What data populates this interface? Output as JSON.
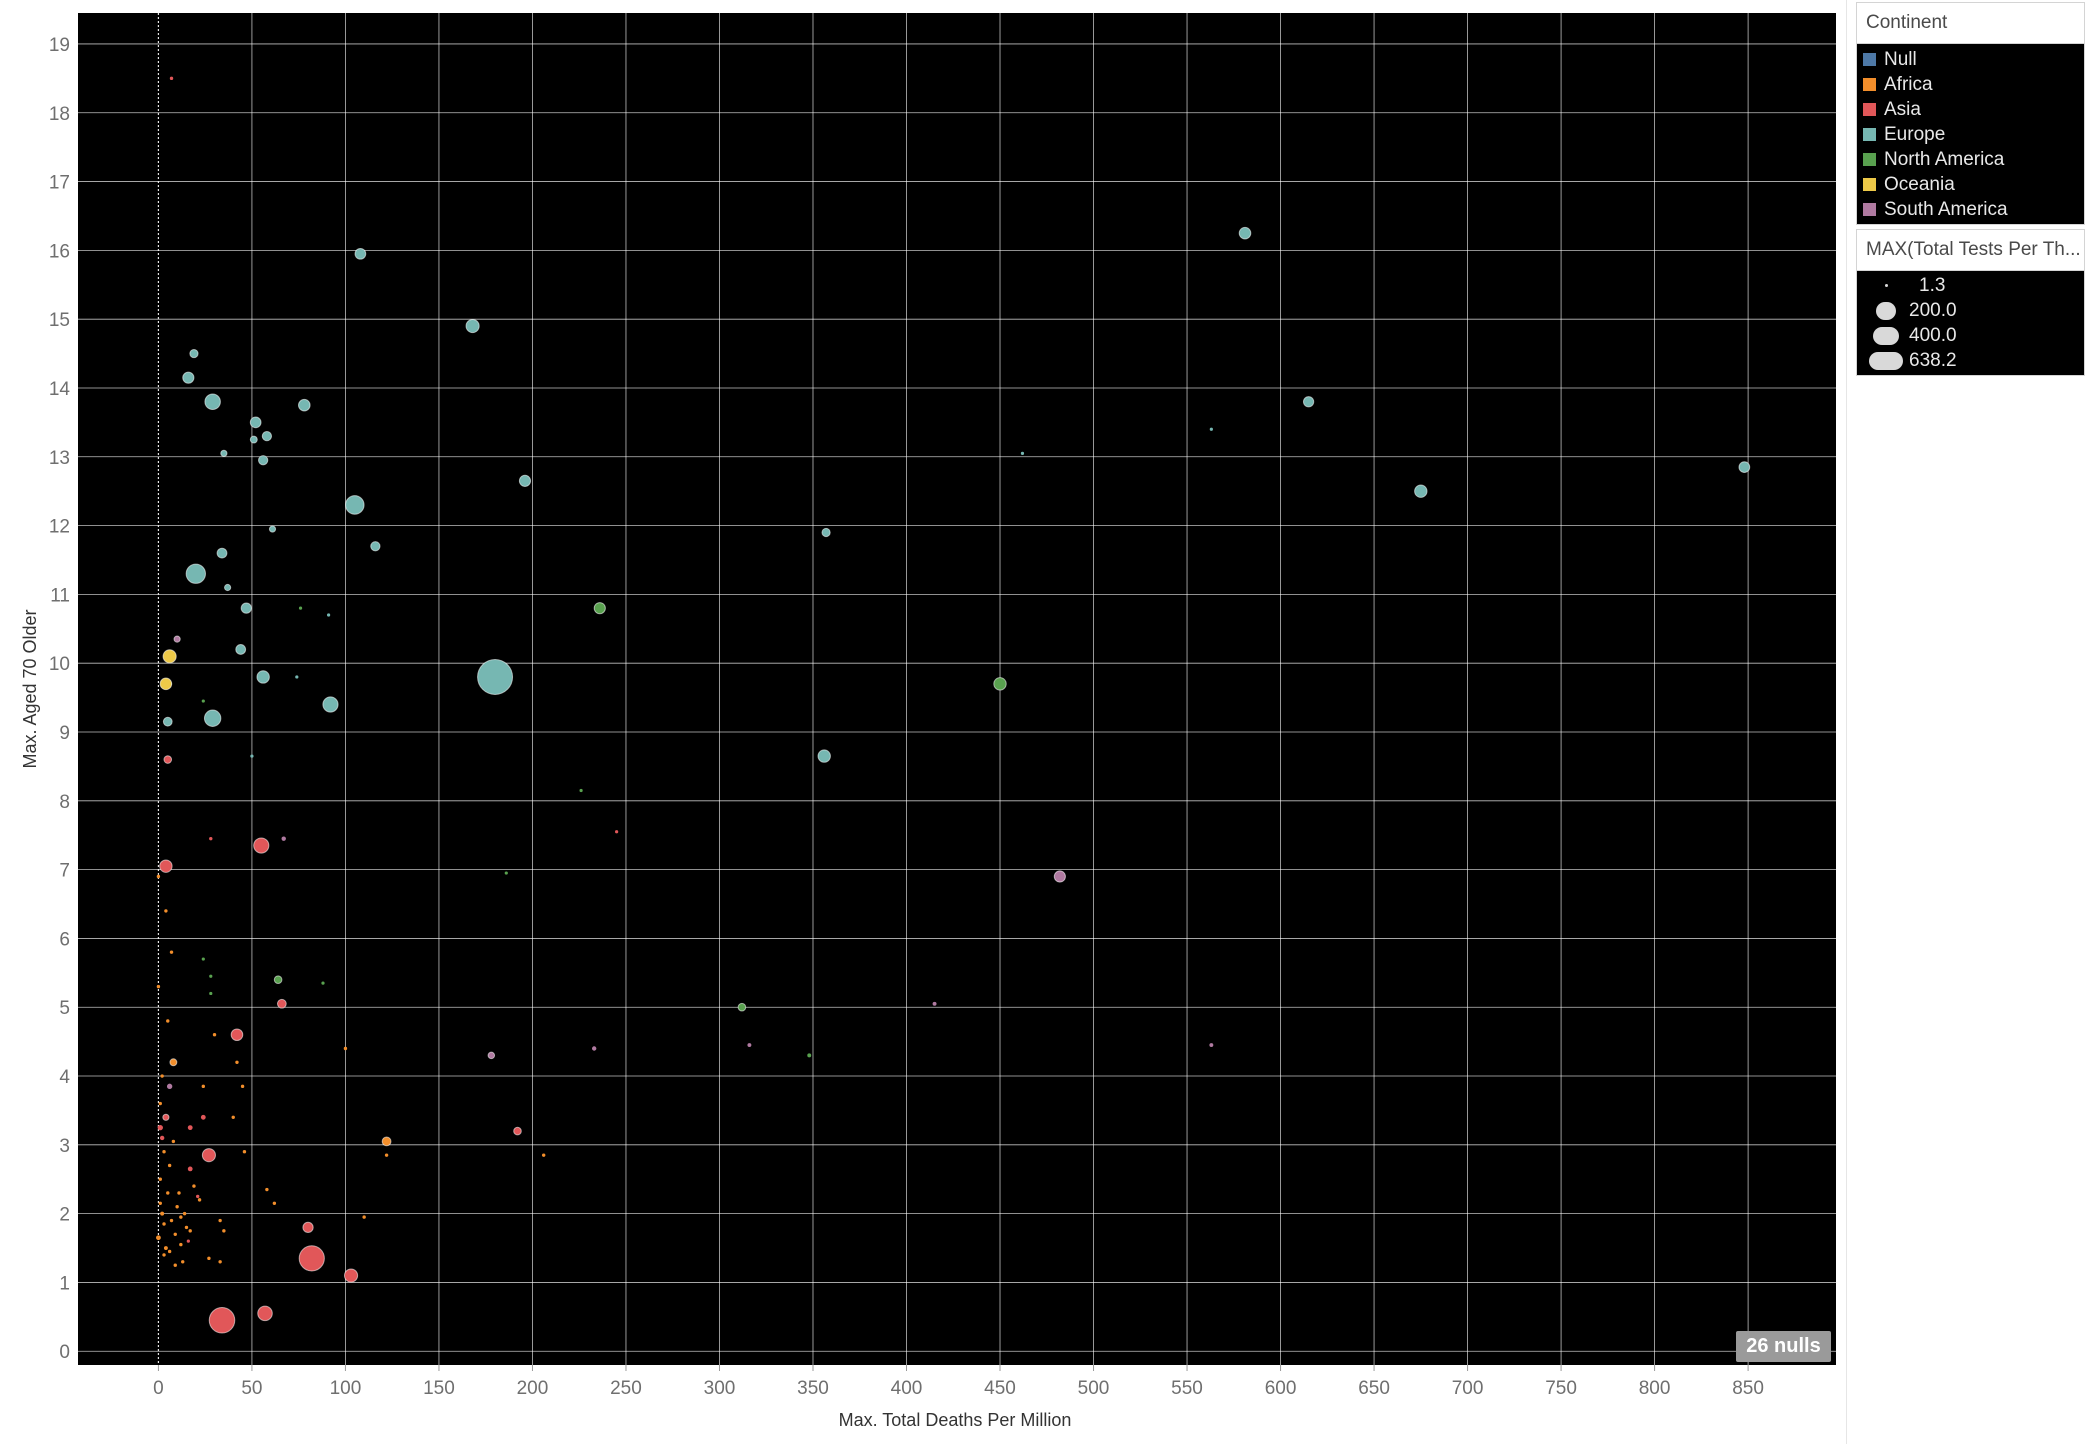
{
  "chart_data": {
    "type": "scatter",
    "title": "",
    "xlabel": "Max. Total Deaths Per Million",
    "ylabel": "Max. Aged 70 Older",
    "xlim": [
      -43,
      897
    ],
    "ylim": [
      -0.2,
      19.45
    ],
    "x_ticks": [
      0,
      50,
      100,
      150,
      200,
      250,
      300,
      350,
      400,
      450,
      500,
      550,
      600,
      650,
      700,
      750,
      800,
      850
    ],
    "y_ticks": [
      0,
      1,
      2,
      3,
      4,
      5,
      6,
      7,
      8,
      9,
      10,
      11,
      12,
      13,
      14,
      15,
      16,
      17,
      18,
      19
    ],
    "grid": true,
    "background": "#000000",
    "zero_line": "dotted",
    "legend_placement": "right",
    "color_legend": {
      "title": "Continent",
      "items": [
        {
          "label": "Null",
          "color": "#4e79a7"
        },
        {
          "label": "Africa",
          "color": "#f28e2b"
        },
        {
          "label": "Asia",
          "color": "#e15759"
        },
        {
          "label": "Europe",
          "color": "#76b7b2"
        },
        {
          "label": "North America",
          "color": "#59a14f"
        },
        {
          "label": "Oceania",
          "color": "#edc948"
        },
        {
          "label": "South America",
          "color": "#b07aa1"
        }
      ]
    },
    "size_legend": {
      "title": "MAX(Total Tests Per Th...",
      "items": [
        {
          "label": "1.3",
          "value": 1.3
        },
        {
          "label": "200.0",
          "value": 200
        },
        {
          "label": "400.0",
          "value": 400
        },
        {
          "label": "638.2",
          "value": 638.2
        }
      ]
    },
    "nulls_label": "26 nulls",
    "series": [
      {
        "name": "Europe",
        "color": "#76b7b2",
        "points": [
          [
            108,
            15.95,
            60
          ],
          [
            168,
            14.9,
            90
          ],
          [
            19,
            14.5,
            35
          ],
          [
            16,
            14.15,
            65
          ],
          [
            29,
            13.8,
            125
          ],
          [
            52,
            13.5,
            60
          ],
          [
            78,
            13.75,
            70
          ],
          [
            58,
            13.3,
            45
          ],
          [
            51,
            13.25,
            25
          ],
          [
            35,
            13.05,
            20
          ],
          [
            56,
            12.95,
            45
          ],
          [
            105,
            12.3,
            180
          ],
          [
            196,
            12.65,
            65
          ],
          [
            61,
            11.95,
            20
          ],
          [
            116,
            11.7,
            45
          ],
          [
            34,
            11.6,
            50
          ],
          [
            20,
            11.3,
            195
          ],
          [
            37,
            11.1,
            20
          ],
          [
            47,
            10.8,
            55
          ],
          [
            44,
            10.2,
            50
          ],
          [
            56,
            9.8,
            80
          ],
          [
            180,
            9.8,
            638.2
          ],
          [
            92,
            9.4,
            120
          ],
          [
            29,
            9.2,
            140
          ],
          [
            5,
            9.15,
            40
          ],
          [
            581,
            16.25,
            70
          ],
          [
            615,
            13.8,
            55
          ],
          [
            675,
            12.5,
            80
          ],
          [
            848,
            12.85,
            60
          ],
          [
            357,
            11.9,
            35
          ],
          [
            356,
            8.65,
            80
          ],
          [
            6,
            9.7,
            12
          ],
          [
            50,
            8.65,
            5
          ],
          [
            74,
            9.8,
            5
          ],
          [
            91,
            10.7,
            5
          ],
          [
            563,
            13.4,
            5
          ],
          [
            462,
            13.05,
            5
          ]
        ]
      },
      {
        "name": "Asia",
        "color": "#e15759",
        "points": [
          [
            7,
            18.5,
            6
          ],
          [
            5,
            8.6,
            30
          ],
          [
            55,
            7.35,
            120
          ],
          [
            4,
            7.05,
            80
          ],
          [
            66,
            5.05,
            40
          ],
          [
            42,
            4.6,
            70
          ],
          [
            27,
            2.85,
            90
          ],
          [
            4,
            3.4,
            20
          ],
          [
            192,
            3.2,
            30
          ],
          [
            80,
            1.8,
            55
          ],
          [
            82,
            1.35,
            330
          ],
          [
            103,
            1.1,
            90
          ],
          [
            34,
            0.45,
            340
          ],
          [
            57,
            0.55,
            110
          ],
          [
            17,
            3.25,
            12
          ],
          [
            24,
            3.4,
            12
          ],
          [
            17,
            2.65,
            12
          ],
          [
            1,
            3.25,
            15
          ],
          [
            2,
            3.1,
            10
          ],
          [
            28,
            7.45,
            6
          ],
          [
            245,
            7.55,
            5
          ],
          [
            16,
            1.6,
            5
          ],
          [
            21,
            2.25,
            6
          ]
        ]
      },
      {
        "name": "North America",
        "color": "#59a14f",
        "points": [
          [
            236,
            10.8,
            65
          ],
          [
            450,
            9.7,
            80
          ],
          [
            64,
            5.4,
            30
          ],
          [
            312,
            5.0,
            30
          ],
          [
            348,
            4.3,
            8
          ],
          [
            24,
            9.45,
            5
          ],
          [
            226,
            8.15,
            5
          ],
          [
            24,
            5.7,
            5
          ],
          [
            28,
            5.45,
            5
          ],
          [
            28,
            5.2,
            5
          ],
          [
            76,
            10.8,
            5
          ],
          [
            88,
            5.35,
            5
          ],
          [
            186,
            6.95,
            5
          ]
        ]
      },
      {
        "name": "Oceania",
        "color": "#edc948",
        "points": [
          [
            6,
            10.1,
            90
          ],
          [
            4,
            9.7,
            70
          ]
        ]
      },
      {
        "name": "South America",
        "color": "#b07aa1",
        "points": [
          [
            10,
            10.35,
            20
          ],
          [
            482,
            6.9,
            65
          ],
          [
            178,
            4.3,
            22
          ],
          [
            67,
            7.45,
            10
          ],
          [
            6,
            3.85,
            15
          ],
          [
            233,
            4.4,
            10
          ],
          [
            316,
            4.45,
            8
          ],
          [
            415,
            5.05,
            8
          ],
          [
            563,
            4.45,
            8
          ]
        ]
      },
      {
        "name": "Africa",
        "color": "#f28e2b",
        "points": [
          [
            122,
            3.05,
            40
          ],
          [
            8,
            4.2,
            25
          ],
          [
            0,
            1.65,
            12
          ],
          [
            2,
            2.0,
            8
          ],
          [
            4,
            1.5,
            8
          ],
          [
            5,
            2.3,
            6
          ],
          [
            7,
            1.9,
            6
          ],
          [
            1,
            2.5,
            6
          ],
          [
            3,
            1.4,
            6
          ],
          [
            9,
            1.7,
            6
          ],
          [
            10,
            2.1,
            6
          ],
          [
            12,
            1.55,
            6
          ],
          [
            6,
            2.7,
            6
          ],
          [
            14,
            2.0,
            6
          ],
          [
            15,
            1.8,
            6
          ],
          [
            3,
            2.9,
            6
          ],
          [
            8,
            3.05,
            6
          ],
          [
            1,
            3.6,
            6
          ],
          [
            2,
            4.0,
            6
          ],
          [
            5,
            4.8,
            6
          ],
          [
            0,
            5.3,
            6
          ],
          [
            7,
            5.8,
            6
          ],
          [
            4,
            6.4,
            6
          ],
          [
            0,
            6.9,
            6
          ],
          [
            11,
            2.3,
            6
          ],
          [
            13,
            1.3,
            6
          ],
          [
            17,
            1.75,
            6
          ],
          [
            19,
            2.4,
            6
          ],
          [
            22,
            2.2,
            6
          ],
          [
            24,
            3.85,
            6
          ],
          [
            27,
            1.35,
            6
          ],
          [
            30,
            4.6,
            6
          ],
          [
            33,
            1.9,
            6
          ],
          [
            35,
            1.75,
            6
          ],
          [
            40,
            3.4,
            6
          ],
          [
            42,
            4.2,
            6
          ],
          [
            45,
            3.85,
            6
          ],
          [
            46,
            2.9,
            6
          ],
          [
            58,
            2.35,
            6
          ],
          [
            62,
            2.15,
            6
          ],
          [
            100,
            4.4,
            6
          ],
          [
            110,
            1.95,
            6
          ],
          [
            122,
            2.85,
            6
          ],
          [
            206,
            2.85,
            6
          ],
          [
            33,
            1.3,
            6
          ],
          [
            6,
            1.45,
            6
          ],
          [
            9,
            1.25,
            6
          ],
          [
            3,
            1.85,
            6
          ],
          [
            1,
            2.15,
            6
          ],
          [
            12,
            1.95,
            6
          ]
        ]
      }
    ]
  }
}
